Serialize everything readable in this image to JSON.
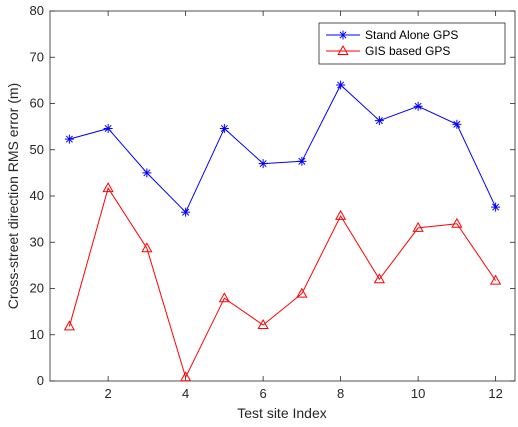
{
  "chart_data": {
    "type": "line",
    "xlabel": "Test site Index",
    "ylabel": "Cross-street direction RMS error (m)",
    "xlim": [
      0.5,
      12.5
    ],
    "ylim": [
      0,
      80
    ],
    "xticks": [
      2,
      4,
      6,
      8,
      10,
      12
    ],
    "yticks": [
      0,
      10,
      20,
      30,
      40,
      50,
      60,
      70,
      80
    ],
    "grid": false,
    "legend_position": "top-right",
    "x": [
      1,
      2,
      3,
      4,
      5,
      6,
      7,
      8,
      9,
      10,
      11,
      12
    ],
    "series": [
      {
        "name": "Stand Alone GPS",
        "color": "#0000ff",
        "marker": "asterisk",
        "values": [
          52.3,
          54.6,
          45.0,
          36.5,
          54.6,
          47.0,
          47.5,
          64.0,
          56.3,
          59.4,
          55.5,
          37.6
        ]
      },
      {
        "name": "GIS based GPS",
        "color": "#ff0000",
        "marker": "triangle",
        "values": [
          11.8,
          41.7,
          28.7,
          0.8,
          17.9,
          12.1,
          18.9,
          35.7,
          22.0,
          33.1,
          34.0,
          21.7
        ]
      }
    ]
  }
}
